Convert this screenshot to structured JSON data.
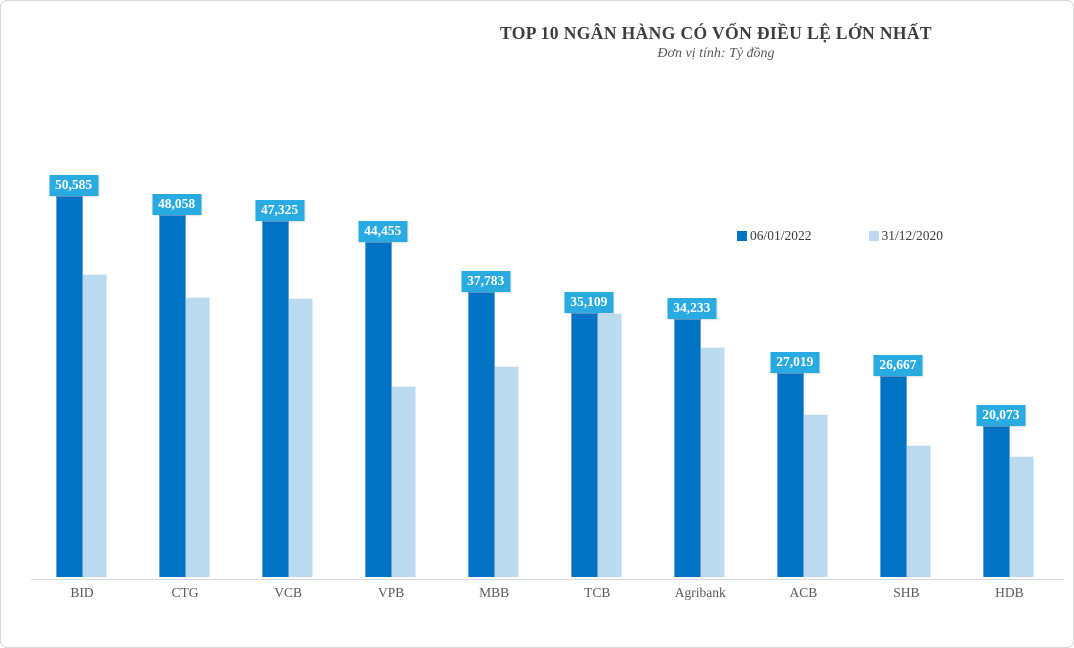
{
  "chart_data": {
    "type": "bar",
    "title": "TOP 10 NGÂN HÀNG CÓ VỐN ĐIỀU LỆ LỚN NHẤT",
    "subtitle": "Đơn vị tính: Tỷ đồng",
    "unit": "Tỷ đồng",
    "categories": [
      "BID",
      "CTG",
      "VCB",
      "VPB",
      "MBB",
      "TCB",
      "Agribank",
      "ACB",
      "SHB",
      "HDB"
    ],
    "series": [
      {
        "name": "06/01/2022",
        "color": "#0073c4",
        "values": [
          50585,
          48058,
          47325,
          44455,
          37783,
          35109,
          34233,
          27019,
          26667,
          20073
        ],
        "data_labels": [
          "50,585",
          "48,058",
          "47,325",
          "44,455",
          "37,783",
          "35,109",
          "34,233",
          "27,019",
          "26,667",
          "20,073"
        ]
      },
      {
        "name": "31/12/2020",
        "color": "#bcdaef",
        "values": [
          40220,
          37234,
          37089,
          25300,
          27988,
          35049,
          30591,
          21616,
          17558,
          16088
        ]
      }
    ],
    "ylim": [
      0,
      52000
    ],
    "grid": false,
    "legend_position": "inside-upper-right",
    "data_label_style": {
      "background": "#29abe2",
      "text_color": "#ffffff"
    },
    "axis_line_color": "#d9d9d9"
  }
}
